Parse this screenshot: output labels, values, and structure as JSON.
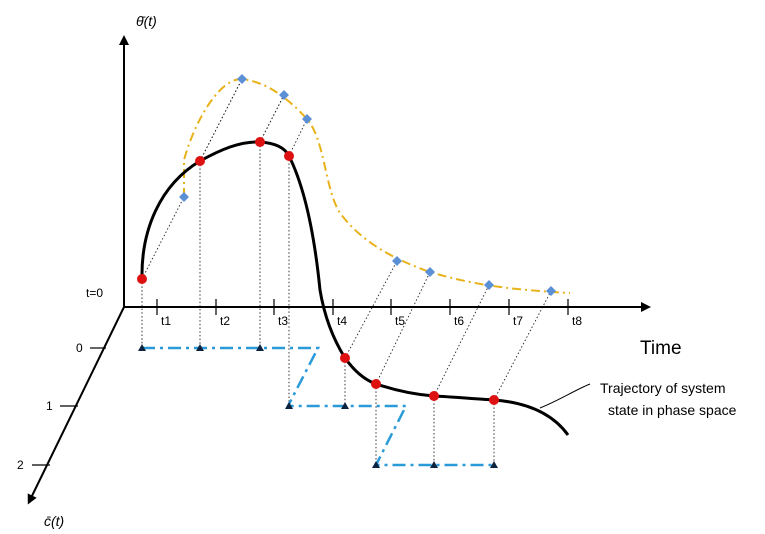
{
  "y_axis_label": "θ̄(t)",
  "z_axis_label": "c̄(t)",
  "x_axis_label": "Time",
  "origin_label": "t=0",
  "time_ticks": [
    "t1",
    "t2",
    "t3",
    "t4",
    "t5",
    "t6",
    "t7",
    "t8"
  ],
  "state_ticks": [
    "0",
    "1",
    "2"
  ],
  "annotation_line1": "Trajectory of system",
  "annotation_line2": "state in phase space",
  "colors": {
    "trajectory": "#000000",
    "projection": "#e8b21a",
    "projection_point": "#5b8fd6",
    "state_point": "#dd1111",
    "state_path": "#2a9ad8"
  }
}
